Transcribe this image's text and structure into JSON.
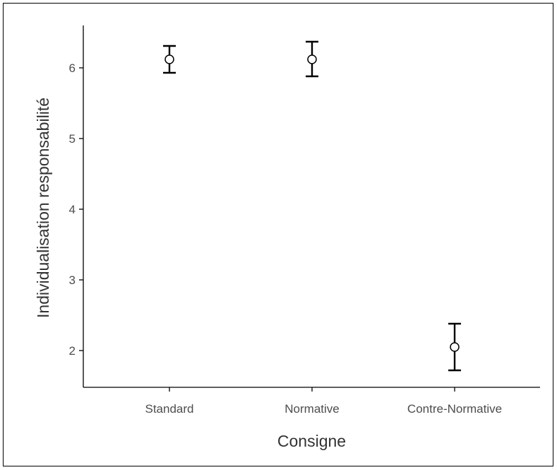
{
  "chart_data": {
    "type": "scatter",
    "title": "",
    "xlabel": "Consigne",
    "ylabel": "Individualisation responsabilité",
    "categories": [
      "Standard",
      "Normative",
      "Contre-Normative"
    ],
    "series": [
      {
        "values": [
          6.12,
          6.12,
          2.05
        ],
        "error_lower": [
          5.93,
          5.88,
          1.72
        ],
        "error_upper": [
          6.31,
          6.37,
          2.38
        ]
      }
    ],
    "yticks": [
      2,
      3,
      4,
      5,
      6
    ],
    "ylim": [
      1.48,
      6.6
    ],
    "grid": false,
    "legend": "none"
  }
}
